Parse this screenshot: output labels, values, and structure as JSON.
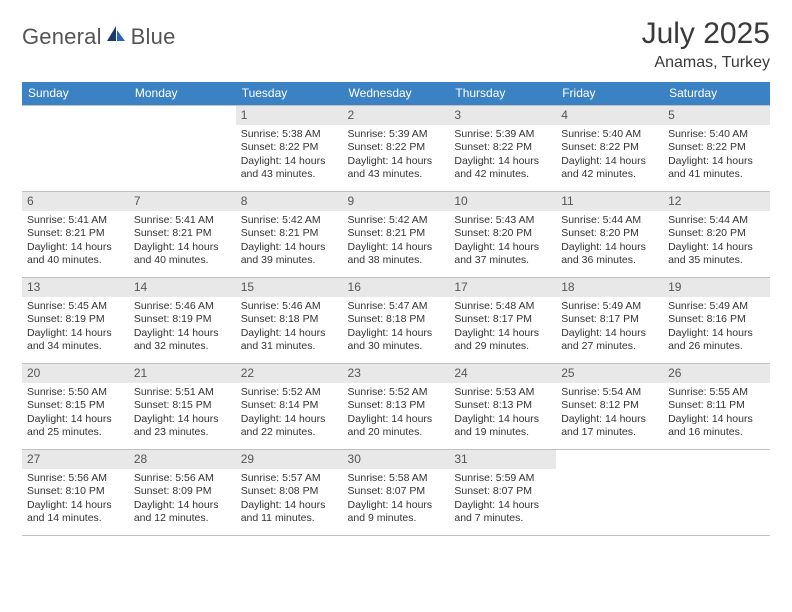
{
  "logo": {
    "word1": "General",
    "word2": "Blue"
  },
  "header": {
    "title": "July 2025",
    "subtitle": "Anamas, Turkey"
  },
  "colors": {
    "header_blue": "#3b82c4",
    "day_num_bg": "#e8e8e8",
    "border": "#c0c0c0",
    "logo_navy": "#1a3a6e",
    "logo_blue": "#2563c4"
  },
  "calendar": {
    "weekdays": [
      "Sunday",
      "Monday",
      "Tuesday",
      "Wednesday",
      "Thursday",
      "Friday",
      "Saturday"
    ],
    "weeks": [
      [
        null,
        null,
        {
          "d": "1",
          "sr": "Sunrise: 5:38 AM",
          "ss": "Sunset: 8:22 PM",
          "dl1": "Daylight: 14 hours",
          "dl2": "and 43 minutes."
        },
        {
          "d": "2",
          "sr": "Sunrise: 5:39 AM",
          "ss": "Sunset: 8:22 PM",
          "dl1": "Daylight: 14 hours",
          "dl2": "and 43 minutes."
        },
        {
          "d": "3",
          "sr": "Sunrise: 5:39 AM",
          "ss": "Sunset: 8:22 PM",
          "dl1": "Daylight: 14 hours",
          "dl2": "and 42 minutes."
        },
        {
          "d": "4",
          "sr": "Sunrise: 5:40 AM",
          "ss": "Sunset: 8:22 PM",
          "dl1": "Daylight: 14 hours",
          "dl2": "and 42 minutes."
        },
        {
          "d": "5",
          "sr": "Sunrise: 5:40 AM",
          "ss": "Sunset: 8:22 PM",
          "dl1": "Daylight: 14 hours",
          "dl2": "and 41 minutes."
        }
      ],
      [
        {
          "d": "6",
          "sr": "Sunrise: 5:41 AM",
          "ss": "Sunset: 8:21 PM",
          "dl1": "Daylight: 14 hours",
          "dl2": "and 40 minutes."
        },
        {
          "d": "7",
          "sr": "Sunrise: 5:41 AM",
          "ss": "Sunset: 8:21 PM",
          "dl1": "Daylight: 14 hours",
          "dl2": "and 40 minutes."
        },
        {
          "d": "8",
          "sr": "Sunrise: 5:42 AM",
          "ss": "Sunset: 8:21 PM",
          "dl1": "Daylight: 14 hours",
          "dl2": "and 39 minutes."
        },
        {
          "d": "9",
          "sr": "Sunrise: 5:42 AM",
          "ss": "Sunset: 8:21 PM",
          "dl1": "Daylight: 14 hours",
          "dl2": "and 38 minutes."
        },
        {
          "d": "10",
          "sr": "Sunrise: 5:43 AM",
          "ss": "Sunset: 8:20 PM",
          "dl1": "Daylight: 14 hours",
          "dl2": "and 37 minutes."
        },
        {
          "d": "11",
          "sr": "Sunrise: 5:44 AM",
          "ss": "Sunset: 8:20 PM",
          "dl1": "Daylight: 14 hours",
          "dl2": "and 36 minutes."
        },
        {
          "d": "12",
          "sr": "Sunrise: 5:44 AM",
          "ss": "Sunset: 8:20 PM",
          "dl1": "Daylight: 14 hours",
          "dl2": "and 35 minutes."
        }
      ],
      [
        {
          "d": "13",
          "sr": "Sunrise: 5:45 AM",
          "ss": "Sunset: 8:19 PM",
          "dl1": "Daylight: 14 hours",
          "dl2": "and 34 minutes."
        },
        {
          "d": "14",
          "sr": "Sunrise: 5:46 AM",
          "ss": "Sunset: 8:19 PM",
          "dl1": "Daylight: 14 hours",
          "dl2": "and 32 minutes."
        },
        {
          "d": "15",
          "sr": "Sunrise: 5:46 AM",
          "ss": "Sunset: 8:18 PM",
          "dl1": "Daylight: 14 hours",
          "dl2": "and 31 minutes."
        },
        {
          "d": "16",
          "sr": "Sunrise: 5:47 AM",
          "ss": "Sunset: 8:18 PM",
          "dl1": "Daylight: 14 hours",
          "dl2": "and 30 minutes."
        },
        {
          "d": "17",
          "sr": "Sunrise: 5:48 AM",
          "ss": "Sunset: 8:17 PM",
          "dl1": "Daylight: 14 hours",
          "dl2": "and 29 minutes."
        },
        {
          "d": "18",
          "sr": "Sunrise: 5:49 AM",
          "ss": "Sunset: 8:17 PM",
          "dl1": "Daylight: 14 hours",
          "dl2": "and 27 minutes."
        },
        {
          "d": "19",
          "sr": "Sunrise: 5:49 AM",
          "ss": "Sunset: 8:16 PM",
          "dl1": "Daylight: 14 hours",
          "dl2": "and 26 minutes."
        }
      ],
      [
        {
          "d": "20",
          "sr": "Sunrise: 5:50 AM",
          "ss": "Sunset: 8:15 PM",
          "dl1": "Daylight: 14 hours",
          "dl2": "and 25 minutes."
        },
        {
          "d": "21",
          "sr": "Sunrise: 5:51 AM",
          "ss": "Sunset: 8:15 PM",
          "dl1": "Daylight: 14 hours",
          "dl2": "and 23 minutes."
        },
        {
          "d": "22",
          "sr": "Sunrise: 5:52 AM",
          "ss": "Sunset: 8:14 PM",
          "dl1": "Daylight: 14 hours",
          "dl2": "and 22 minutes."
        },
        {
          "d": "23",
          "sr": "Sunrise: 5:52 AM",
          "ss": "Sunset: 8:13 PM",
          "dl1": "Daylight: 14 hours",
          "dl2": "and 20 minutes."
        },
        {
          "d": "24",
          "sr": "Sunrise: 5:53 AM",
          "ss": "Sunset: 8:13 PM",
          "dl1": "Daylight: 14 hours",
          "dl2": "and 19 minutes."
        },
        {
          "d": "25",
          "sr": "Sunrise: 5:54 AM",
          "ss": "Sunset: 8:12 PM",
          "dl1": "Daylight: 14 hours",
          "dl2": "and 17 minutes."
        },
        {
          "d": "26",
          "sr": "Sunrise: 5:55 AM",
          "ss": "Sunset: 8:11 PM",
          "dl1": "Daylight: 14 hours",
          "dl2": "and 16 minutes."
        }
      ],
      [
        {
          "d": "27",
          "sr": "Sunrise: 5:56 AM",
          "ss": "Sunset: 8:10 PM",
          "dl1": "Daylight: 14 hours",
          "dl2": "and 14 minutes."
        },
        {
          "d": "28",
          "sr": "Sunrise: 5:56 AM",
          "ss": "Sunset: 8:09 PM",
          "dl1": "Daylight: 14 hours",
          "dl2": "and 12 minutes."
        },
        {
          "d": "29",
          "sr": "Sunrise: 5:57 AM",
          "ss": "Sunset: 8:08 PM",
          "dl1": "Daylight: 14 hours",
          "dl2": "and 11 minutes."
        },
        {
          "d": "30",
          "sr": "Sunrise: 5:58 AM",
          "ss": "Sunset: 8:07 PM",
          "dl1": "Daylight: 14 hours",
          "dl2": "and 9 minutes."
        },
        {
          "d": "31",
          "sr": "Sunrise: 5:59 AM",
          "ss": "Sunset: 8:07 PM",
          "dl1": "Daylight: 14 hours",
          "dl2": "and 7 minutes."
        },
        null,
        null
      ]
    ]
  }
}
